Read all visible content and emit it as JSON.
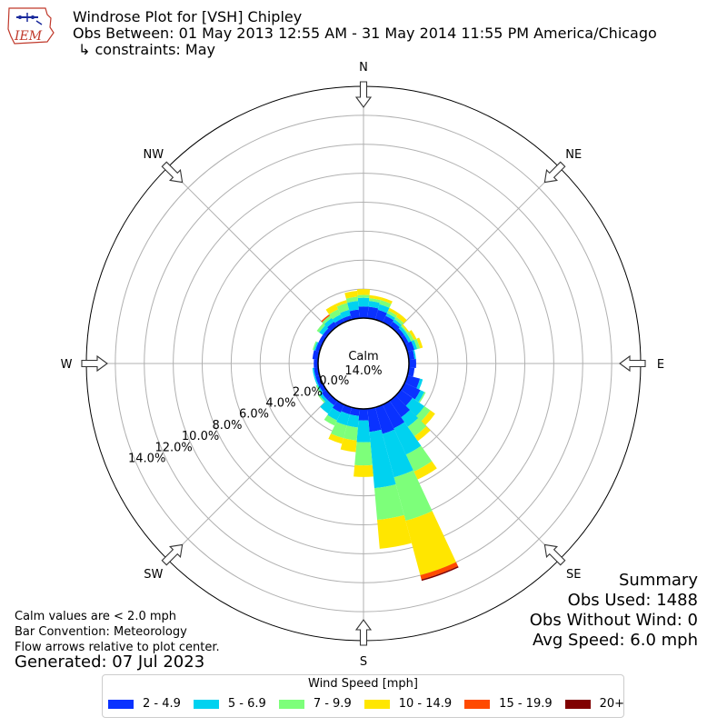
{
  "header": {
    "title": "Windrose Plot for [VSH] Chipley",
    "subtitle": "Obs Between: 01 May 2013 12:55 AM - 31 May 2014 11:55 PM America/Chicago",
    "constraints": "↳ constraints: May",
    "logo_text": "IEM"
  },
  "notes": {
    "calm_note": "Calm values are < 2.0 mph",
    "bar_convention": "Bar Convention: Meteorology",
    "flow_arrows": "Flow arrows relative to plot center.",
    "generated": "Generated: 07 Jul 2023"
  },
  "summary": {
    "title": "Summary",
    "obs_used": "Obs Used: 1488",
    "obs_without_wind": "Obs Without Wind: 0",
    "avg_speed": "Avg Speed: 6.0 mph"
  },
  "chart_data": {
    "type": "windrose",
    "calm_label": "Calm",
    "calm_value": "14.0%",
    "calm_percent": 14.0,
    "directions": [
      "N",
      "NE",
      "E",
      "SE",
      "S",
      "SW",
      "W",
      "NW"
    ],
    "radial_ticks": [
      "0.0%",
      "2.0%",
      "4.0%",
      "6.0%",
      "8.0%",
      "10.0%",
      "12.0%",
      "14.0%"
    ],
    "radial_tick_values": [
      0,
      2,
      4,
      6,
      8,
      10,
      12,
      14
    ],
    "rmax": 16,
    "legend_title": "Wind Speed [mph]",
    "speed_bins": [
      {
        "label": "2 - 4.9",
        "color": "#0a32ff"
      },
      {
        "label": "5 - 6.9",
        "color": "#00d2f0"
      },
      {
        "label": "7 - 9.9",
        "color": "#7dff7a"
      },
      {
        "label": "10 - 14.9",
        "color": "#ffe600"
      },
      {
        "label": "15 - 19.9",
        "color": "#ff4a00"
      },
      {
        "label": "20+",
        "color": "#800000"
      }
    ],
    "sector_angles_deg": [
      0,
      10,
      20,
      30,
      40,
      50,
      60,
      70,
      80,
      90,
      100,
      110,
      120,
      130,
      140,
      150,
      160,
      170,
      180,
      190,
      200,
      210,
      220,
      230,
      240,
      250,
      260,
      270,
      280,
      290,
      300,
      310,
      320,
      330,
      340,
      350
    ],
    "cumulative_percent": [
      [
        0.8,
        1.4,
        1.6,
        2.0,
        2.0,
        2.0
      ],
      [
        0.8,
        1.2,
        1.4,
        1.6,
        1.6,
        1.6
      ],
      [
        0.7,
        1.1,
        1.4,
        1.6,
        1.6,
        1.6
      ],
      [
        0.5,
        0.7,
        0.9,
        1.1,
        1.1,
        1.1
      ],
      [
        0.4,
        0.6,
        0.8,
        1.1,
        1.1,
        1.1
      ],
      [
        0.3,
        0.5,
        0.6,
        0.7,
        0.7,
        0.7
      ],
      [
        0.3,
        0.5,
        0.7,
        0.9,
        0.9,
        0.9
      ],
      [
        0.5,
        0.7,
        0.9,
        1.1,
        1.1,
        1.1
      ],
      [
        0.4,
        0.5,
        0.5,
        0.5,
        0.5,
        0.5
      ],
      [
        0.5,
        0.5,
        0.5,
        0.5,
        0.5,
        0.5
      ],
      [
        0.4,
        0.4,
        0.4,
        0.4,
        0.4,
        0.4
      ],
      [
        0.9,
        1.1,
        1.1,
        1.1,
        1.1,
        1.1
      ],
      [
        1.2,
        1.5,
        1.6,
        1.6,
        1.6,
        1.6
      ],
      [
        1.0,
        2.0,
        2.5,
        2.9,
        2.9,
        2.9
      ],
      [
        1.4,
        2.2,
        3.0,
        3.4,
        3.4,
        3.4
      ],
      [
        1.8,
        3.8,
        5.1,
        5.7,
        5.7,
        5.7
      ],
      [
        1.9,
        5.0,
        8.1,
        12.0,
        12.3,
        12.4
      ],
      [
        1.6,
        5.5,
        7.7,
        9.7,
        9.7,
        9.7
      ],
      [
        0.8,
        2.3,
        3.9,
        4.7,
        4.7,
        4.7
      ],
      [
        0.5,
        1.3,
        2.2,
        3.0,
        3.0,
        3.0
      ],
      [
        0.5,
        1.3,
        2.2,
        2.6,
        2.6,
        2.6
      ],
      [
        0.6,
        1.2,
        1.6,
        1.6,
        1.6,
        1.6
      ],
      [
        0.4,
        1.1,
        1.1,
        1.1,
        1.1,
        1.1
      ],
      [
        0.4,
        0.6,
        0.7,
        0.7,
        0.7,
        0.7
      ],
      [
        0.3,
        0.4,
        0.5,
        0.5,
        0.5,
        0.5
      ],
      [
        0.3,
        0.4,
        0.4,
        0.4,
        0.4,
        0.4
      ],
      [
        0.3,
        0.4,
        0.4,
        0.4,
        0.4,
        0.4
      ],
      [
        0.3,
        0.3,
        0.3,
        0.3,
        0.3,
        0.3
      ],
      [
        0.4,
        0.4,
        0.4,
        0.4,
        0.4,
        0.4
      ],
      [
        0.3,
        0.4,
        0.5,
        0.5,
        0.5,
        0.5
      ],
      [
        0.3,
        0.3,
        0.3,
        0.3,
        0.3,
        0.3
      ],
      [
        0.3,
        0.6,
        0.8,
        0.8,
        0.8,
        0.8
      ],
      [
        0.4,
        0.7,
        0.9,
        0.9,
        1.0,
        1.0
      ],
      [
        0.3,
        0.6,
        1.0,
        1.4,
        1.4,
        1.4
      ],
      [
        0.3,
        0.7,
        1.2,
        1.4,
        1.4,
        1.4
      ],
      [
        0.6,
        1.2,
        1.5,
        1.9,
        1.9,
        1.9
      ]
    ]
  }
}
